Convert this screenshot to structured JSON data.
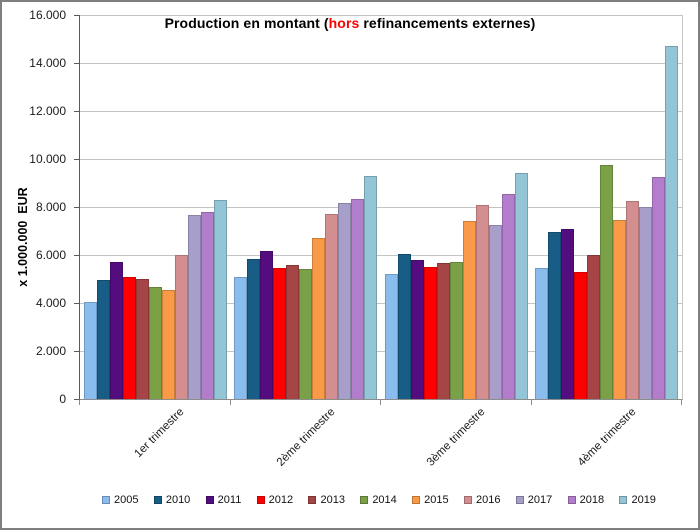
{
  "title": {
    "prefix": "Production en montant (",
    "red": "hors",
    "suffix": " refinancements externes)"
  },
  "y_axis": {
    "label": "x 1.000.000  EUR",
    "ticks": [
      "16.000",
      "14.000",
      "12.000",
      "10.000",
      "8.000",
      "6.000",
      "4.000",
      "2.000",
      "0"
    ]
  },
  "chart_data": {
    "type": "bar",
    "title": "Production en montant (hors refinancements externes)",
    "ylabel": "x 1.000.000 EUR",
    "xlabel": "",
    "ylim": [
      0,
      16000
    ],
    "ytick_step": 2000,
    "grid": true,
    "legend_position": "bottom",
    "categories": [
      "1er trimestre",
      "2ème trimestre",
      "3ème trimestre",
      "4ème trimestre"
    ],
    "series": [
      {
        "name": "2005",
        "color": "#8abced",
        "values": [
          4050,
          5100,
          5200,
          5450
        ]
      },
      {
        "name": "2010",
        "color": "#175d85",
        "values": [
          4950,
          5850,
          6050,
          6950
        ]
      },
      {
        "name": "2011",
        "color": "#530d7e",
        "values": [
          5700,
          6150,
          5800,
          7100
        ]
      },
      {
        "name": "2012",
        "color": "#fe0000",
        "values": [
          5100,
          5450,
          5500,
          5300
        ]
      },
      {
        "name": "2013",
        "color": "#a64545",
        "values": [
          5000,
          5600,
          5650,
          6000
        ]
      },
      {
        "name": "2014",
        "color": "#7aa148",
        "values": [
          4650,
          5400,
          5700,
          9750
        ]
      },
      {
        "name": "2015",
        "color": "#f89a47",
        "values": [
          4550,
          6700,
          7400,
          7450
        ]
      },
      {
        "name": "2016",
        "color": "#d38e90",
        "values": [
          6000,
          7700,
          8100,
          8250
        ]
      },
      {
        "name": "2017",
        "color": "#a79fc9",
        "values": [
          7650,
          8150,
          7250,
          8000
        ]
      },
      {
        "name": "2018",
        "color": "#b27ecc",
        "values": [
          7800,
          8350,
          8550,
          9250
        ]
      },
      {
        "name": "2019",
        "color": "#93c5d7",
        "values": [
          8300,
          9300,
          9400,
          14700
        ]
      }
    ]
  }
}
